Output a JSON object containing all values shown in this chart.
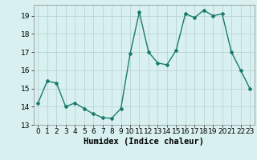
{
  "x": [
    0,
    1,
    2,
    3,
    4,
    5,
    6,
    7,
    8,
    9,
    10,
    11,
    12,
    13,
    14,
    15,
    16,
    17,
    18,
    19,
    20,
    21,
    22,
    23
  ],
  "y": [
    14.2,
    15.4,
    15.3,
    14.0,
    14.2,
    13.9,
    13.6,
    13.4,
    13.35,
    13.9,
    16.9,
    19.2,
    17.0,
    16.4,
    16.3,
    17.1,
    19.1,
    18.9,
    19.3,
    19.0,
    19.1,
    17.0,
    16.0,
    15.0
  ],
  "xlabel": "Humidex (Indice chaleur)",
  "ylim": [
    13,
    19.6
  ],
  "xlim": [
    -0.5,
    23.5
  ],
  "yticks": [
    13,
    14,
    15,
    16,
    17,
    18,
    19
  ],
  "xticks": [
    0,
    1,
    2,
    3,
    4,
    5,
    6,
    7,
    8,
    9,
    10,
    11,
    12,
    13,
    14,
    15,
    16,
    17,
    18,
    19,
    20,
    21,
    22,
    23
  ],
  "line_color": "#1a7a6e",
  "marker": "D",
  "marker_size": 2.0,
  "bg_color": "#d9f0f0",
  "grid_color": "#b8d4d4",
  "xlabel_fontsize": 7.5,
  "tick_fontsize": 6.5
}
